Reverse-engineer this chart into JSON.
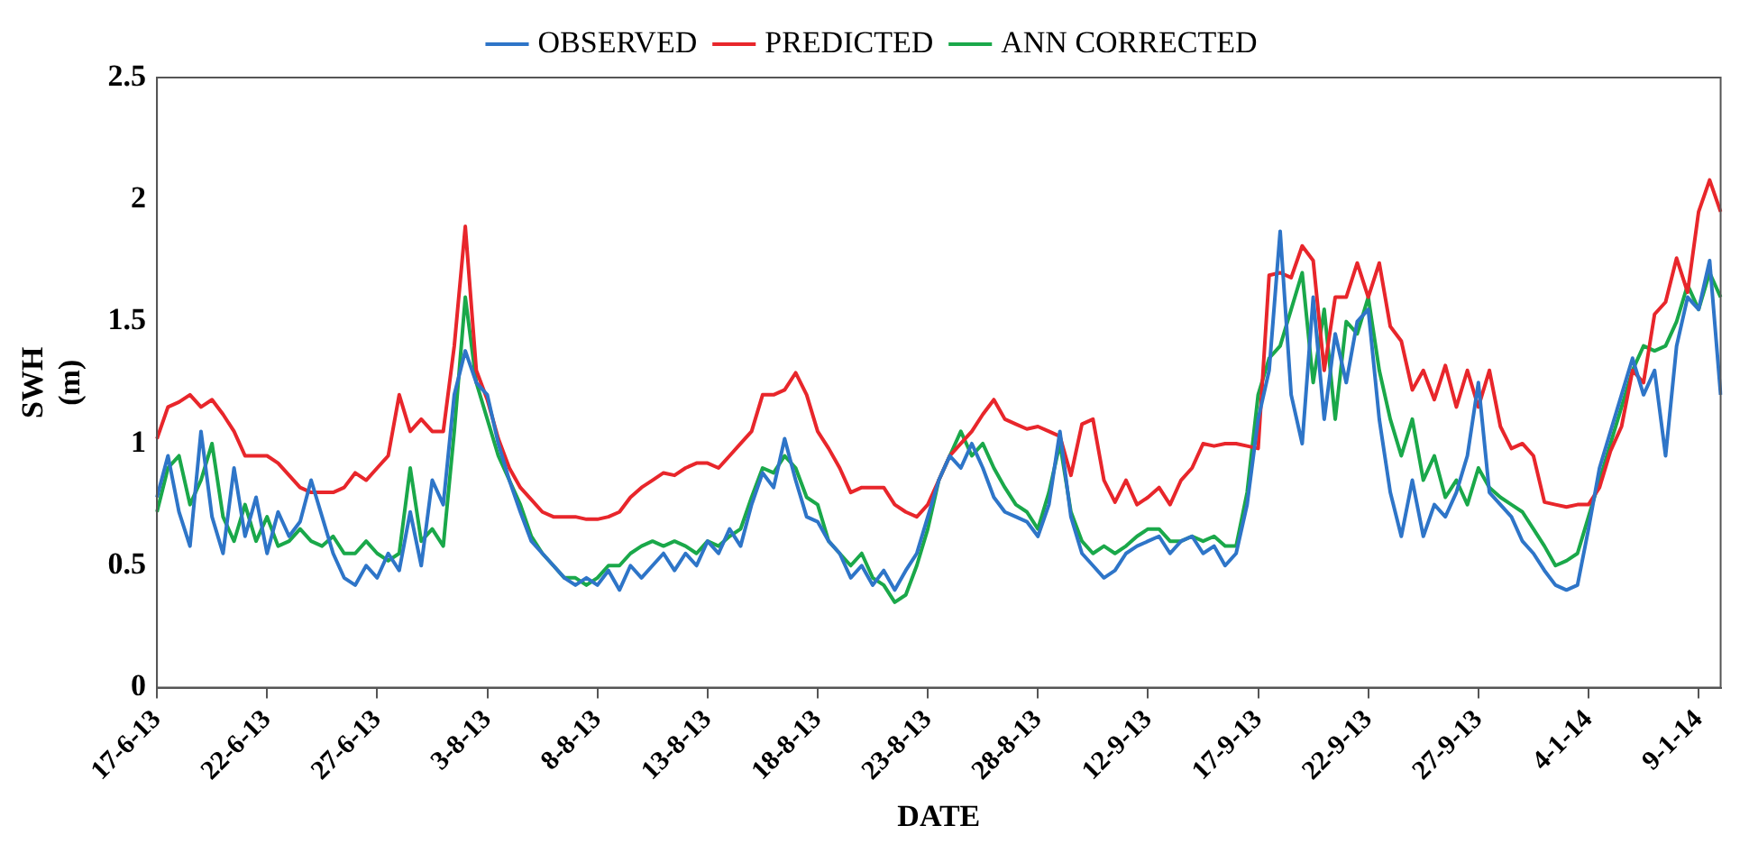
{
  "chart_data": {
    "type": "line",
    "xlabel": "DATE",
    "ylabel": "SWH (m)",
    "ylim": [
      0,
      2.5
    ],
    "yticks": [
      0,
      0.5,
      1,
      1.5,
      2,
      2.5
    ],
    "grid": false,
    "legend": "top",
    "marker": "none",
    "line_style": "solid",
    "categories": [
      "17-6-13",
      null,
      null,
      null,
      null,
      null,
      null,
      null,
      null,
      null,
      "22-6-13",
      null,
      null,
      null,
      null,
      null,
      null,
      null,
      null,
      null,
      "27-6-13",
      null,
      null,
      null,
      null,
      null,
      null,
      null,
      null,
      null,
      "3-8-13",
      null,
      null,
      null,
      null,
      null,
      null,
      null,
      null,
      null,
      "8-8-13",
      null,
      null,
      null,
      null,
      null,
      null,
      null,
      null,
      null,
      "13-8-13",
      null,
      null,
      null,
      null,
      null,
      null,
      null,
      null,
      null,
      "18-8-13",
      null,
      null,
      null,
      null,
      null,
      null,
      null,
      null,
      null,
      "23-8-13",
      null,
      null,
      null,
      null,
      null,
      null,
      null,
      null,
      null,
      "28-8-13",
      null,
      null,
      null,
      null,
      null,
      null,
      null,
      null,
      null,
      "12-9-13",
      null,
      null,
      null,
      null,
      null,
      null,
      null,
      null,
      null,
      "17-9-13",
      null,
      null,
      null,
      null,
      null,
      null,
      null,
      null,
      null,
      "22-9-13",
      null,
      null,
      null,
      null,
      null,
      null,
      null,
      null,
      null,
      "27-9-13",
      null,
      null,
      null,
      null,
      null,
      null,
      null,
      null,
      null,
      "4-1-14",
      null,
      null,
      null,
      null,
      null,
      null,
      null,
      null,
      null,
      "9-1-14",
      null,
      null
    ],
    "series": [
      {
        "name": "OBSERVED",
        "color": "#2e75c8",
        "values": [
          0.78,
          0.95,
          0.72,
          0.58,
          1.05,
          0.7,
          0.55,
          0.9,
          0.62,
          0.78,
          0.55,
          0.72,
          0.62,
          0.68,
          0.85,
          0.7,
          0.55,
          0.45,
          0.42,
          0.5,
          0.45,
          0.55,
          0.48,
          0.72,
          0.5,
          0.85,
          0.75,
          1.2,
          1.38,
          1.25,
          1.2,
          1.0,
          0.85,
          0.72,
          0.6,
          0.55,
          0.5,
          0.45,
          0.42,
          0.45,
          0.42,
          0.48,
          0.4,
          0.5,
          0.45,
          0.5,
          0.55,
          0.48,
          0.55,
          0.5,
          0.6,
          0.55,
          0.65,
          0.58,
          0.75,
          0.88,
          0.82,
          1.02,
          0.85,
          0.7,
          0.68,
          0.6,
          0.55,
          0.45,
          0.5,
          0.42,
          0.48,
          0.4,
          0.48,
          0.55,
          0.7,
          0.85,
          0.95,
          0.9,
          1.0,
          0.9,
          0.78,
          0.72,
          0.7,
          0.68,
          0.62,
          0.75,
          1.05,
          0.7,
          0.55,
          0.5,
          0.45,
          0.48,
          0.55,
          0.58,
          0.6,
          0.62,
          0.55,
          0.6,
          0.62,
          0.55,
          0.58,
          0.5,
          0.55,
          0.75,
          1.1,
          1.3,
          1.87,
          1.2,
          1.0,
          1.6,
          1.1,
          1.45,
          1.25,
          1.5,
          1.55,
          1.1,
          0.8,
          0.62,
          0.85,
          0.62,
          0.75,
          0.7,
          0.8,
          0.95,
          1.25,
          0.8,
          0.75,
          0.7,
          0.6,
          0.55,
          0.48,
          0.42,
          0.4,
          0.42,
          0.65,
          0.9,
          1.05,
          1.2,
          1.35,
          1.2,
          1.3,
          0.95,
          1.4,
          1.6,
          1.55,
          1.75,
          1.2
        ]
      },
      {
        "name": "PREDICTED",
        "color": "#e8262b",
        "values": [
          1.02,
          1.15,
          1.17,
          1.2,
          1.15,
          1.18,
          1.12,
          1.05,
          0.95,
          0.95,
          0.95,
          0.92,
          0.87,
          0.82,
          0.8,
          0.8,
          0.8,
          0.82,
          0.88,
          0.85,
          0.9,
          0.95,
          1.2,
          1.05,
          1.1,
          1.05,
          1.05,
          1.4,
          1.89,
          1.3,
          1.18,
          1.02,
          0.9,
          0.82,
          0.77,
          0.72,
          0.7,
          0.7,
          0.7,
          0.69,
          0.69,
          0.7,
          0.72,
          0.78,
          0.82,
          0.85,
          0.88,
          0.87,
          0.9,
          0.92,
          0.92,
          0.9,
          0.95,
          1.0,
          1.05,
          1.2,
          1.2,
          1.22,
          1.29,
          1.2,
          1.05,
          0.98,
          0.9,
          0.8,
          0.82,
          0.82,
          0.82,
          0.75,
          0.72,
          0.7,
          0.75,
          0.85,
          0.95,
          1.0,
          1.05,
          1.12,
          1.18,
          1.1,
          1.08,
          1.06,
          1.07,
          1.05,
          1.03,
          0.87,
          1.08,
          1.1,
          0.85,
          0.76,
          0.85,
          0.75,
          0.78,
          0.82,
          0.75,
          0.85,
          0.9,
          1.0,
          0.99,
          1.0,
          1.0,
          0.99,
          0.98,
          1.69,
          1.7,
          1.68,
          1.81,
          1.75,
          1.3,
          1.6,
          1.6,
          1.74,
          1.6,
          1.74,
          1.48,
          1.42,
          1.22,
          1.3,
          1.18,
          1.32,
          1.15,
          1.3,
          1.15,
          1.3,
          1.07,
          0.98,
          1.0,
          0.95,
          0.76,
          0.75,
          0.74,
          0.75,
          0.75,
          0.82,
          0.97,
          1.07,
          1.3,
          1.25,
          1.53,
          1.58,
          1.76,
          1.62,
          1.95,
          2.08,
          1.95
        ]
      },
      {
        "name": "ANN CORRECTED",
        "color": "#1aa84a",
        "values": [
          0.72,
          0.9,
          0.95,
          0.75,
          0.85,
          1.0,
          0.7,
          0.6,
          0.75,
          0.6,
          0.7,
          0.58,
          0.6,
          0.65,
          0.6,
          0.58,
          0.62,
          0.55,
          0.55,
          0.6,
          0.55,
          0.52,
          0.55,
          0.9,
          0.6,
          0.65,
          0.58,
          1.05,
          1.6,
          1.25,
          1.1,
          0.95,
          0.85,
          0.75,
          0.62,
          0.55,
          0.5,
          0.45,
          0.45,
          0.42,
          0.45,
          0.5,
          0.5,
          0.55,
          0.58,
          0.6,
          0.58,
          0.6,
          0.58,
          0.55,
          0.6,
          0.58,
          0.62,
          0.65,
          0.78,
          0.9,
          0.88,
          0.95,
          0.9,
          0.78,
          0.75,
          0.6,
          0.55,
          0.5,
          0.55,
          0.45,
          0.42,
          0.35,
          0.38,
          0.5,
          0.65,
          0.85,
          0.95,
          1.05,
          0.95,
          1.0,
          0.9,
          0.82,
          0.75,
          0.72,
          0.65,
          0.8,
          1.0,
          0.72,
          0.6,
          0.55,
          0.58,
          0.55,
          0.58,
          0.62,
          0.65,
          0.65,
          0.6,
          0.6,
          0.62,
          0.6,
          0.62,
          0.58,
          0.58,
          0.8,
          1.2,
          1.35,
          1.4,
          1.55,
          1.7,
          1.25,
          1.55,
          1.1,
          1.5,
          1.45,
          1.6,
          1.3,
          1.1,
          0.95,
          1.1,
          0.85,
          0.95,
          0.78,
          0.85,
          0.75,
          0.9,
          0.82,
          0.78,
          0.75,
          0.72,
          0.65,
          0.58,
          0.5,
          0.52,
          0.55,
          0.7,
          0.85,
          1.0,
          1.15,
          1.3,
          1.4,
          1.38,
          1.4,
          1.5,
          1.65,
          1.55,
          1.7,
          1.6
        ]
      }
    ]
  }
}
